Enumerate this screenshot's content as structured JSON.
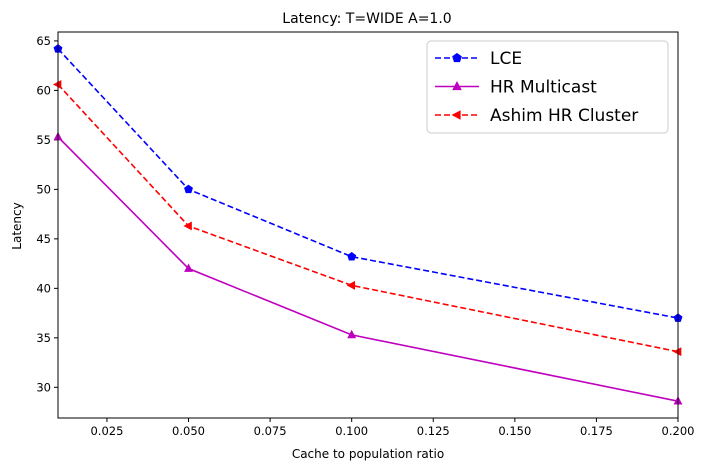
{
  "chart_data": {
    "type": "line",
    "title": "Latency: T=WIDE A=1.0",
    "xlabel": "Cache to population ratio",
    "ylabel": "Latency",
    "xlim": [
      0.01,
      0.2
    ],
    "ylim": [
      26.9,
      65.9
    ],
    "xticks": [
      0.025,
      0.05,
      0.075,
      0.1,
      0.125,
      0.15,
      0.175,
      0.2
    ],
    "xtick_labels": [
      "0.025",
      "0.050",
      "0.075",
      "0.100",
      "0.125",
      "0.150",
      "0.175",
      "0.200"
    ],
    "yticks": [
      30,
      35,
      40,
      45,
      50,
      55,
      60,
      65
    ],
    "ytick_labels": [
      "30",
      "35",
      "40",
      "45",
      "50",
      "55",
      "60",
      "65"
    ],
    "grid": false,
    "legend_position": "top-right",
    "x": [
      0.01,
      0.05,
      0.1,
      0.2
    ],
    "series": [
      {
        "name": "LCE",
        "values": [
          64.2,
          50.0,
          43.2,
          37.0
        ],
        "color": "#0000ff",
        "line_style": "dashed",
        "marker": "pentagon"
      },
      {
        "name": "HR Multicast",
        "values": [
          55.3,
          42.0,
          35.3,
          28.6
        ],
        "color": "#bf00bf",
        "line_style": "solid",
        "marker": "triangle-up"
      },
      {
        "name": "Ashim HR Cluster",
        "values": [
          60.6,
          46.3,
          40.3,
          33.6
        ],
        "color": "#ff0000",
        "line_style": "dashed",
        "marker": "triangle-left"
      }
    ]
  }
}
